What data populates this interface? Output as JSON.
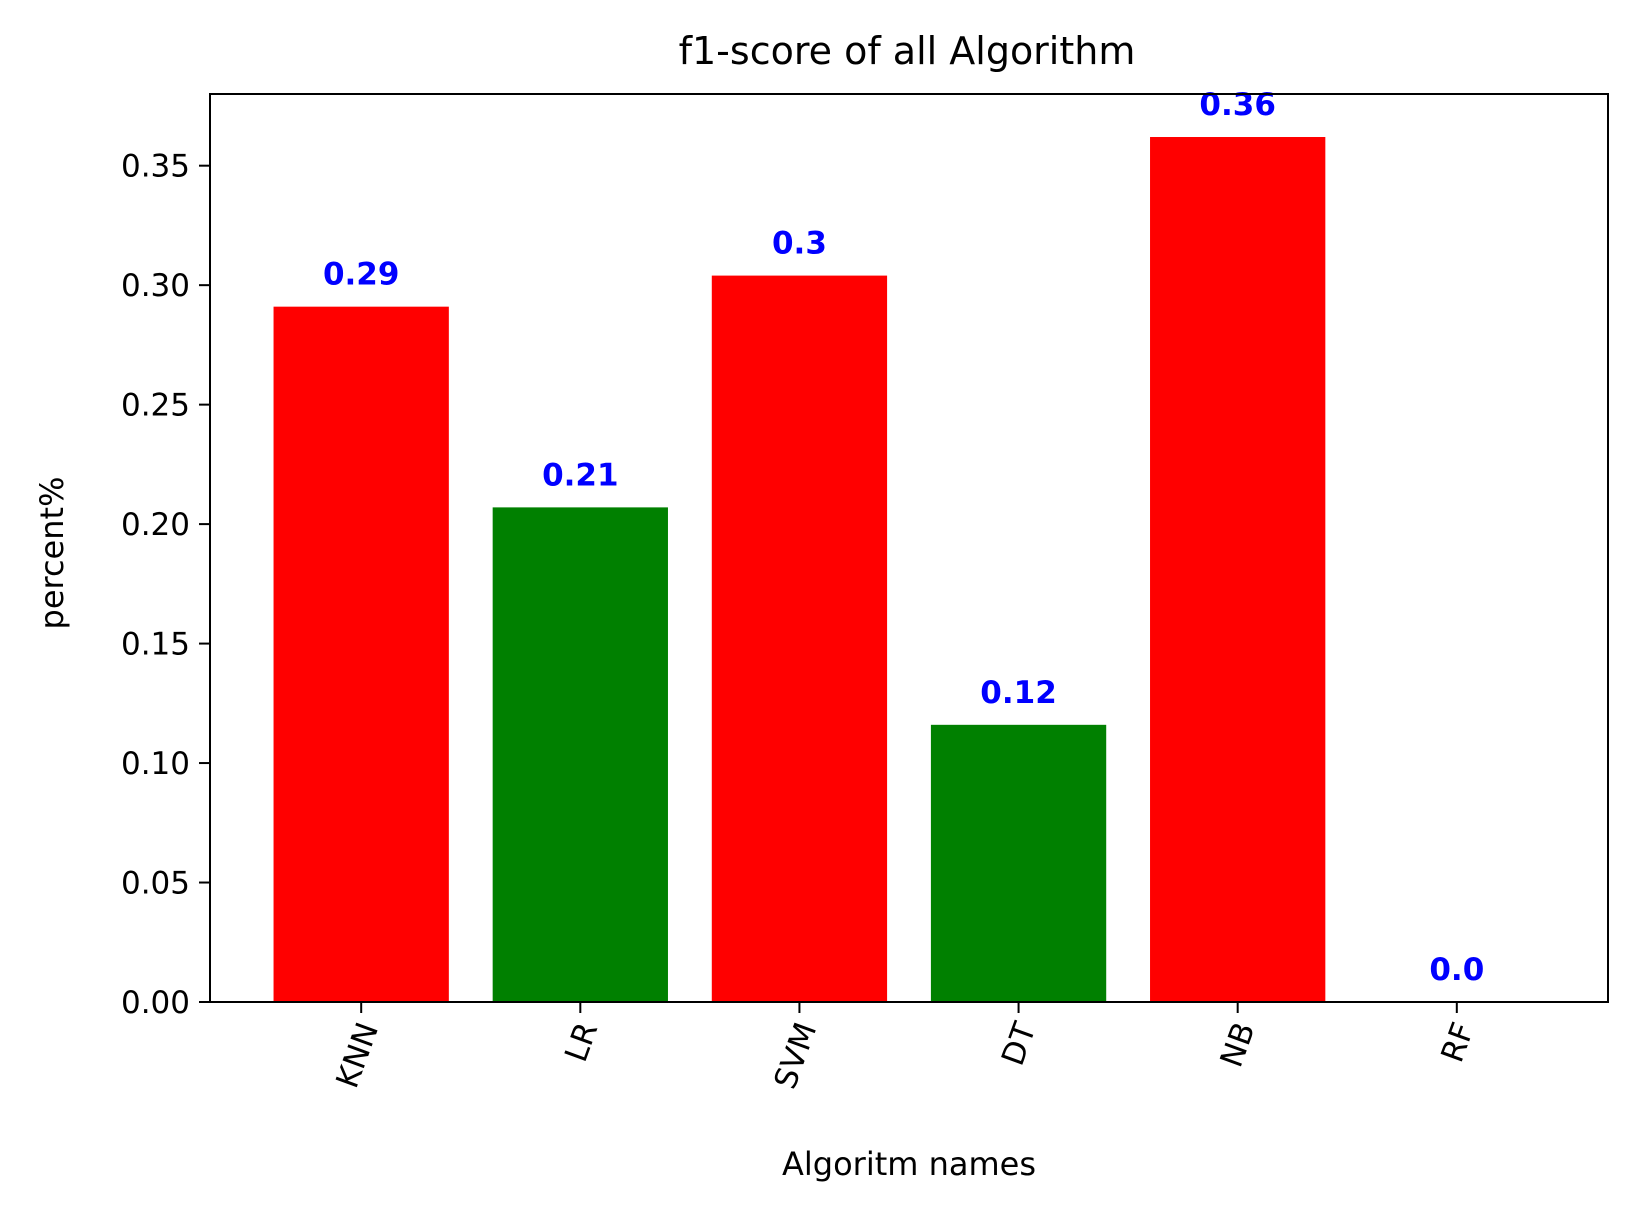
{
  "chart_data": {
    "type": "bar",
    "title": "f1-score of all Algorithm",
    "xlabel": "Algoritm names",
    "ylabel": "percent%",
    "categories": [
      "KNN",
      "LR",
      "SVM",
      "DT",
      "NB",
      "RF"
    ],
    "values": [
      0.291,
      0.207,
      0.304,
      0.116,
      0.362,
      0.0
    ],
    "data_labels": [
      "0.29",
      "0.21",
      "0.3",
      "0.12",
      "0.36",
      "0.0"
    ],
    "bar_colors": [
      "#ff0000",
      "#008000",
      "#ff0000",
      "#008000",
      "#ff0000",
      "#ff0000"
    ],
    "data_label_color": "#0000ff",
    "ylim": [
      0,
      0.38
    ],
    "yticks": [
      0.0,
      0.05,
      0.1,
      0.15,
      0.2,
      0.25,
      0.3,
      0.35
    ],
    "ytick_labels": [
      "0.00",
      "0.05",
      "0.10",
      "0.15",
      "0.20",
      "0.25",
      "0.30",
      "0.35"
    ],
    "xtick_rotation_deg": 70,
    "grid": false,
    "legend": "none"
  }
}
